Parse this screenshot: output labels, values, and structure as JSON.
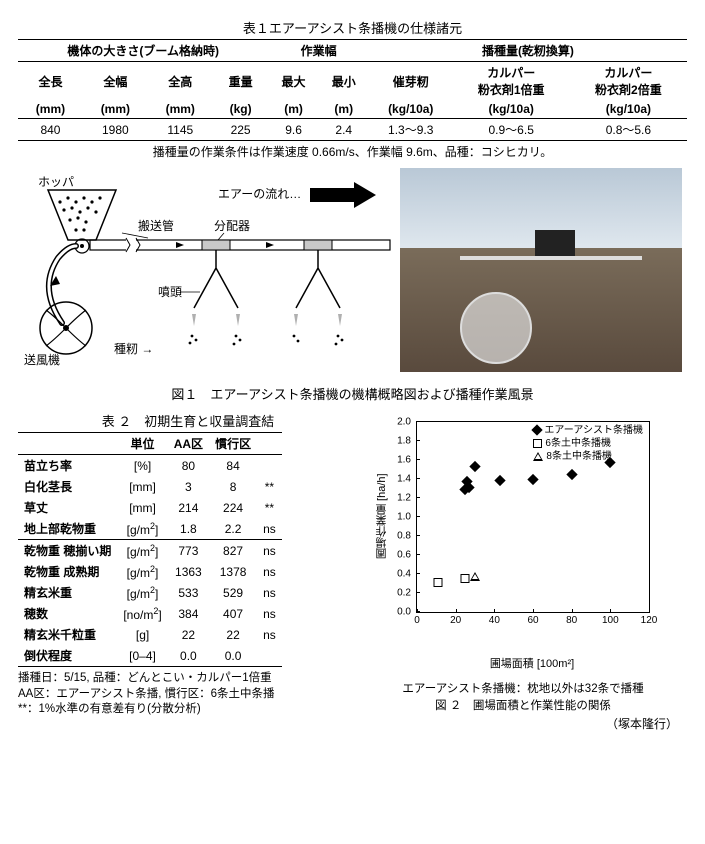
{
  "table1": {
    "title": "表１エアーアシスト条播機の仕様諸元",
    "group_headers": [
      "機体の大きさ(ブーム格納時)",
      "作業幅",
      "播種量(乾籾換算)"
    ],
    "group_spans": [
      4,
      2,
      3
    ],
    "cols": [
      {
        "h1": "全長",
        "h2": "(mm)"
      },
      {
        "h1": "全幅",
        "h2": "(mm)"
      },
      {
        "h1": "全高",
        "h2": "(mm)"
      },
      {
        "h1": "重量",
        "h2": "(kg)"
      },
      {
        "h1": "最大",
        "h2": "(m)"
      },
      {
        "h1": "最小",
        "h2": "(m)"
      },
      {
        "h1": "催芽籾",
        "h2": "(kg/10a)"
      },
      {
        "h1": "カルパー\n粉衣剤1倍重",
        "h2": "(kg/10a)"
      },
      {
        "h1": "カルパー\n粉衣剤2倍重",
        "h2": "(kg/10a)"
      }
    ],
    "row": [
      "840",
      "1980",
      "1145",
      "225",
      "9.6",
      "2.4",
      "1.3〜9.3",
      "0.9〜6.5",
      "0.8〜5.6"
    ],
    "note": "播種量の作業条件は作業速度 0.66m/s、作業幅 9.6m、品種：コシヒカリ。"
  },
  "fig1": {
    "caption": "図１　エアーアシスト条播機の機構概略図および播種作業風景",
    "labels": {
      "hopper": "ホッパ",
      "airflow": "エアーの流れ…",
      "pipe": "搬送管",
      "dist": "分配器",
      "nozzle": "噴頭",
      "blower": "送風機",
      "seed": "種籾 →"
    }
  },
  "table2": {
    "title": "表 ２　初期生育と収量調査結",
    "col_headers": [
      "",
      "単位",
      "AA区",
      "慣行区",
      ""
    ],
    "rows": [
      [
        "苗立ち率",
        "[%]",
        "80",
        "84",
        ""
      ],
      [
        "白化茎長",
        "[mm]",
        "3",
        "8",
        "**"
      ],
      [
        "草丈",
        "[mm]",
        "214",
        "224",
        "**"
      ],
      [
        "地上部乾物重",
        "[g/m²]",
        "1.8",
        "2.2",
        "ns"
      ],
      [
        "乾物重 穂揃い期",
        "[g/m²]",
        "773",
        "827",
        "ns"
      ],
      [
        "乾物重 成熟期",
        "[g/m²]",
        "1363",
        "1378",
        "ns"
      ],
      [
        "精玄米重",
        "[g/m²]",
        "533",
        "529",
        "ns"
      ],
      [
        "穂数",
        "[no/m²]",
        "384",
        "407",
        "ns"
      ],
      [
        "精玄米千粒重",
        "[g]",
        "22",
        "22",
        "ns"
      ],
      [
        "倒伏程度",
        "[0–4]",
        "0.0",
        "0.0",
        ""
      ]
    ],
    "underline_row_indices": [
      3,
      9
    ],
    "notes": [
      "播種日：5/15, 品種：どんとこい・カルパー1倍重",
      "AA区：エアーアシスト条播, 慣行区：6条土中条播",
      "**：1%水準の有意差有り(分散分析)"
    ]
  },
  "fig2": {
    "xlim": [
      0,
      120
    ],
    "ylim": [
      0.0,
      2.0
    ],
    "xticks": [
      0,
      20,
      40,
      60,
      80,
      100,
      120
    ],
    "yticks": [
      0.0,
      0.2,
      0.4,
      0.6,
      0.8,
      1.0,
      1.2,
      1.4,
      1.6,
      1.8,
      2.0
    ],
    "xlabel": "圃場面積 [100m²]",
    "ylabel": "圃場作業量 [ha/h]",
    "legend": [
      {
        "label": "エアーアシスト条播機",
        "marker": "diamond",
        "fill": "#000000"
      },
      {
        "label": "6条土中条播機",
        "marker": "square_open",
        "fill": "#ffffff"
      },
      {
        "label": "8条土中条播機",
        "marker": "triangle_open",
        "fill": "#ffffff"
      }
    ],
    "series": {
      "air_assist": [
        [
          25,
          1.27
        ],
        [
          26,
          1.36
        ],
        [
          27,
          1.3
        ],
        [
          30,
          1.52
        ],
        [
          43,
          1.37
        ],
        [
          60,
          1.38
        ],
        [
          80,
          1.43
        ],
        [
          100,
          1.56
        ]
      ],
      "six_row": [
        [
          11,
          0.3
        ],
        [
          25,
          0.34
        ]
      ],
      "eight_row": [
        [
          30,
          0.36
        ]
      ]
    },
    "sub_caption": "エアーアシスト条播機：枕地以外は32条で播種",
    "caption": "図 ２　圃場面積と作業性能の関係",
    "author": "（塚本隆行）",
    "plot_border": "#000000",
    "bg": "#ffffff"
  }
}
